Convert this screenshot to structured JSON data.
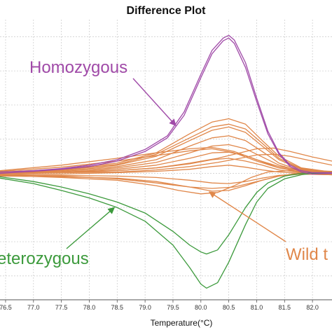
{
  "chart_data": {
    "type": "line",
    "title": "Difference Plot",
    "xlabel": "Temperature(°C)",
    "ylabel": "",
    "xlim": [
      76.4,
      82.35
    ],
    "ylim": [
      -1.85,
      2.25
    ],
    "x_ticks": [
      "76.5",
      "77.0",
      "77.5",
      "78.0",
      "78.5",
      "79.0",
      "79.5",
      "80.0",
      "80.5",
      "81.0",
      "81.5",
      "82.0"
    ],
    "grid": true,
    "legend": "none",
    "colors": {
      "homozygous": "#a04aa8",
      "heterozygous": "#3c9a3c",
      "wildtype": "#e0874a",
      "grid": "#c8c8c8"
    },
    "annotations": [
      {
        "text": "Homozygous",
        "color": "#a04aa8",
        "x": 76.9,
        "y": 1.45,
        "arrow_to": [
          79.55,
          0.7
        ]
      },
      {
        "text": "eterozygous",
        "color": "#3c9a3c",
        "x": 76.3,
        "y": -1.0,
        "arrow_to": [
          78.45,
          -0.5
        ]
      },
      {
        "text": "Wild t",
        "color": "#e0874a",
        "x": 81.85,
        "y": -0.95,
        "arrow_to": [
          80.15,
          -0.27
        ]
      }
    ],
    "series": [
      {
        "group": "homozygous",
        "x": [
          76.4,
          77.0,
          77.5,
          78.0,
          78.5,
          79.0,
          79.4,
          79.7,
          80.0,
          80.2,
          80.4,
          80.5,
          80.6,
          80.8,
          81.0,
          81.2,
          81.4,
          81.6,
          81.8,
          82.0,
          82.35
        ],
        "y": [
          0.02,
          0.04,
          0.07,
          0.12,
          0.2,
          0.35,
          0.55,
          0.9,
          1.45,
          1.8,
          1.98,
          2.02,
          1.95,
          1.62,
          1.1,
          0.62,
          0.3,
          0.12,
          0.04,
          0.01,
          0.01
        ]
      },
      {
        "group": "homozygous",
        "x": [
          76.4,
          77.0,
          77.5,
          78.0,
          78.5,
          79.0,
          79.4,
          79.7,
          80.0,
          80.2,
          80.4,
          80.5,
          80.6,
          80.8,
          81.0,
          81.2,
          81.4,
          81.6,
          81.8,
          82.0,
          82.35
        ],
        "y": [
          0.0,
          0.03,
          0.06,
          0.1,
          0.18,
          0.32,
          0.52,
          0.85,
          1.4,
          1.75,
          1.94,
          1.98,
          1.9,
          1.55,
          1.05,
          0.58,
          0.28,
          0.1,
          0.02,
          -0.01,
          0.0
        ]
      },
      {
        "group": "heterozygous",
        "x": [
          76.4,
          77.0,
          77.5,
          78.0,
          78.5,
          79.0,
          79.5,
          79.8,
          80.0,
          80.1,
          80.3,
          80.5,
          80.8,
          81.0,
          81.2,
          81.5,
          81.8,
          82.0,
          82.35
        ],
        "y": [
          -0.07,
          -0.15,
          -0.25,
          -0.36,
          -0.5,
          -0.7,
          -1.05,
          -1.38,
          -1.62,
          -1.68,
          -1.6,
          -1.3,
          -0.75,
          -0.42,
          -0.22,
          -0.08,
          -0.02,
          0.0,
          0.0
        ]
      },
      {
        "group": "heterozygous",
        "x": [
          76.4,
          77.0,
          77.5,
          78.0,
          78.5,
          79.0,
          79.5,
          79.8,
          80.0,
          80.1,
          80.3,
          80.5,
          80.8,
          81.0,
          81.2,
          81.5,
          81.8,
          82.0,
          82.35
        ],
        "y": [
          -0.05,
          -0.12,
          -0.2,
          -0.3,
          -0.42,
          -0.58,
          -0.85,
          -1.05,
          -1.15,
          -1.18,
          -1.12,
          -0.9,
          -0.5,
          -0.28,
          -0.14,
          -0.04,
          0.0,
          0.01,
          0.01
        ]
      },
      {
        "group": "wildtype",
        "x": [
          76.4,
          77.5,
          78.5,
          79.2,
          79.8,
          80.2,
          80.5,
          80.8,
          81.1,
          81.4,
          81.8,
          82.35
        ],
        "y": [
          0.02,
          0.06,
          0.15,
          0.3,
          0.58,
          0.75,
          0.8,
          0.72,
          0.48,
          0.25,
          0.08,
          0.02
        ]
      },
      {
        "group": "wildtype",
        "x": [
          76.4,
          77.5,
          78.5,
          79.2,
          79.8,
          80.2,
          80.5,
          80.8,
          81.1,
          81.4,
          81.8,
          82.35
        ],
        "y": [
          0.0,
          0.05,
          0.12,
          0.25,
          0.48,
          0.63,
          0.68,
          0.6,
          0.4,
          0.2,
          0.06,
          0.0
        ]
      },
      {
        "group": "wildtype",
        "x": [
          76.4,
          77.5,
          78.5,
          79.2,
          79.8,
          80.2,
          80.5,
          80.8,
          81.1,
          81.4,
          81.8,
          82.35
        ],
        "y": [
          0.01,
          0.04,
          0.1,
          0.2,
          0.4,
          0.52,
          0.55,
          0.48,
          0.32,
          0.15,
          0.04,
          0.01
        ]
      },
      {
        "group": "wildtype",
        "x": [
          76.4,
          77.5,
          78.5,
          79.2,
          79.8,
          80.2,
          80.5,
          80.8,
          81.1,
          81.4,
          81.8,
          82.35
        ],
        "y": [
          0.0,
          0.03,
          0.08,
          0.16,
          0.3,
          0.4,
          0.42,
          0.36,
          0.24,
          0.12,
          0.03,
          0.0
        ]
      },
      {
        "group": "wildtype",
        "x": [
          76.4,
          77.5,
          78.5,
          79.2,
          79.8,
          80.2,
          80.5,
          80.8,
          81.1,
          81.4,
          81.8,
          82.35
        ],
        "y": [
          0.0,
          0.02,
          0.06,
          0.12,
          0.22,
          0.3,
          0.31,
          0.26,
          0.17,
          0.08,
          0.02,
          0.0
        ]
      },
      {
        "group": "wildtype",
        "x": [
          76.4,
          77.5,
          78.5,
          79.2,
          79.8,
          80.2,
          80.5,
          80.8,
          81.1,
          81.4,
          81.8,
          82.35
        ],
        "y": [
          -0.01,
          0.01,
          0.04,
          0.08,
          0.14,
          0.2,
          0.22,
          0.18,
          0.12,
          0.05,
          0.01,
          -0.01
        ]
      },
      {
        "group": "wildtype",
        "x": [
          76.4,
          77.5,
          78.5,
          79.2,
          79.8,
          80.2,
          80.5,
          80.8,
          81.1,
          81.4,
          81.8,
          82.35
        ],
        "y": [
          -0.02,
          -0.01,
          0.01,
          0.03,
          0.06,
          0.1,
          0.12,
          0.09,
          0.05,
          0.02,
          0.0,
          -0.02
        ]
      },
      {
        "group": "wildtype",
        "x": [
          76.4,
          77.5,
          78.5,
          79.2,
          79.8,
          80.2,
          80.5,
          80.8,
          81.1,
          81.4,
          81.8,
          82.35
        ],
        "y": [
          -0.03,
          -0.03,
          -0.04,
          -0.06,
          -0.1,
          -0.14,
          -0.15,
          -0.12,
          -0.07,
          -0.03,
          -0.01,
          -0.02
        ]
      },
      {
        "group": "wildtype",
        "x": [
          76.4,
          77.5,
          78.5,
          79.2,
          79.8,
          80.2,
          80.5,
          80.8,
          81.1,
          81.4,
          81.8,
          82.35
        ],
        "y": [
          -0.04,
          -0.05,
          -0.07,
          -0.12,
          -0.2,
          -0.26,
          -0.25,
          -0.18,
          -0.1,
          -0.04,
          -0.01,
          -0.02
        ]
      },
      {
        "group": "wildtype",
        "x": [
          76.4,
          77.5,
          78.5,
          79.2,
          79.6,
          80.0,
          80.3,
          80.6,
          80.9,
          81.2,
          81.6,
          82.0,
          82.35
        ],
        "y": [
          -0.03,
          -0.06,
          -0.1,
          -0.18,
          -0.25,
          -0.3,
          -0.28,
          -0.18,
          -0.06,
          0.02,
          0.04,
          0.02,
          0.0
        ]
      },
      {
        "group": "wildtype",
        "x": [
          76.4,
          77.5,
          78.5,
          79.2,
          79.8,
          80.3,
          80.7,
          81.0,
          81.3,
          81.6,
          82.0,
          82.35
        ],
        "y": [
          0.01,
          0.02,
          0.04,
          0.08,
          0.15,
          0.22,
          0.3,
          0.36,
          0.37,
          0.32,
          0.24,
          0.18
        ]
      },
      {
        "group": "wildtype",
        "x": [
          76.4,
          77.5,
          78.5,
          79.2,
          79.8,
          80.3,
          80.7,
          81.0,
          81.3,
          81.6,
          82.0,
          82.35
        ],
        "y": [
          0.0,
          0.01,
          0.02,
          0.05,
          0.1,
          0.16,
          0.22,
          0.27,
          0.28,
          0.25,
          0.18,
          0.12
        ]
      },
      {
        "group": "wildtype",
        "x": [
          76.4,
          77.5,
          78.5,
          79.2,
          79.8,
          80.2,
          80.6,
          81.0,
          81.4,
          81.8,
          82.35
        ],
        "y": [
          0.04,
          0.12,
          0.22,
          0.3,
          0.36,
          0.38,
          0.32,
          0.2,
          0.1,
          0.05,
          0.03
        ]
      },
      {
        "group": "wildtype",
        "x": [
          76.4,
          77.5,
          78.5,
          79.2,
          79.8,
          80.2,
          80.6,
          81.0,
          81.4,
          81.8,
          82.35
        ],
        "y": [
          0.03,
          0.09,
          0.18,
          0.26,
          0.33,
          0.36,
          0.3,
          0.18,
          0.08,
          0.04,
          0.02
        ]
      },
      {
        "group": "wildtype",
        "x": [
          76.4,
          77.5,
          78.5,
          79.2,
          79.8,
          80.2,
          80.6,
          81.0,
          81.4,
          81.8,
          82.35
        ],
        "y": [
          -0.02,
          -0.04,
          -0.08,
          -0.14,
          -0.2,
          -0.22,
          -0.2,
          -0.12,
          -0.04,
          0.01,
          0.03
        ]
      },
      {
        "group": "wildtype",
        "x": [
          76.4,
          77.5,
          78.5,
          79.2,
          79.8,
          80.2,
          80.5,
          80.8,
          81.1,
          81.4,
          81.8,
          82.35
        ],
        "y": [
          0.01,
          0.05,
          0.13,
          0.28,
          0.52,
          0.68,
          0.72,
          0.65,
          0.44,
          0.22,
          0.07,
          0.01
        ]
      }
    ]
  }
}
